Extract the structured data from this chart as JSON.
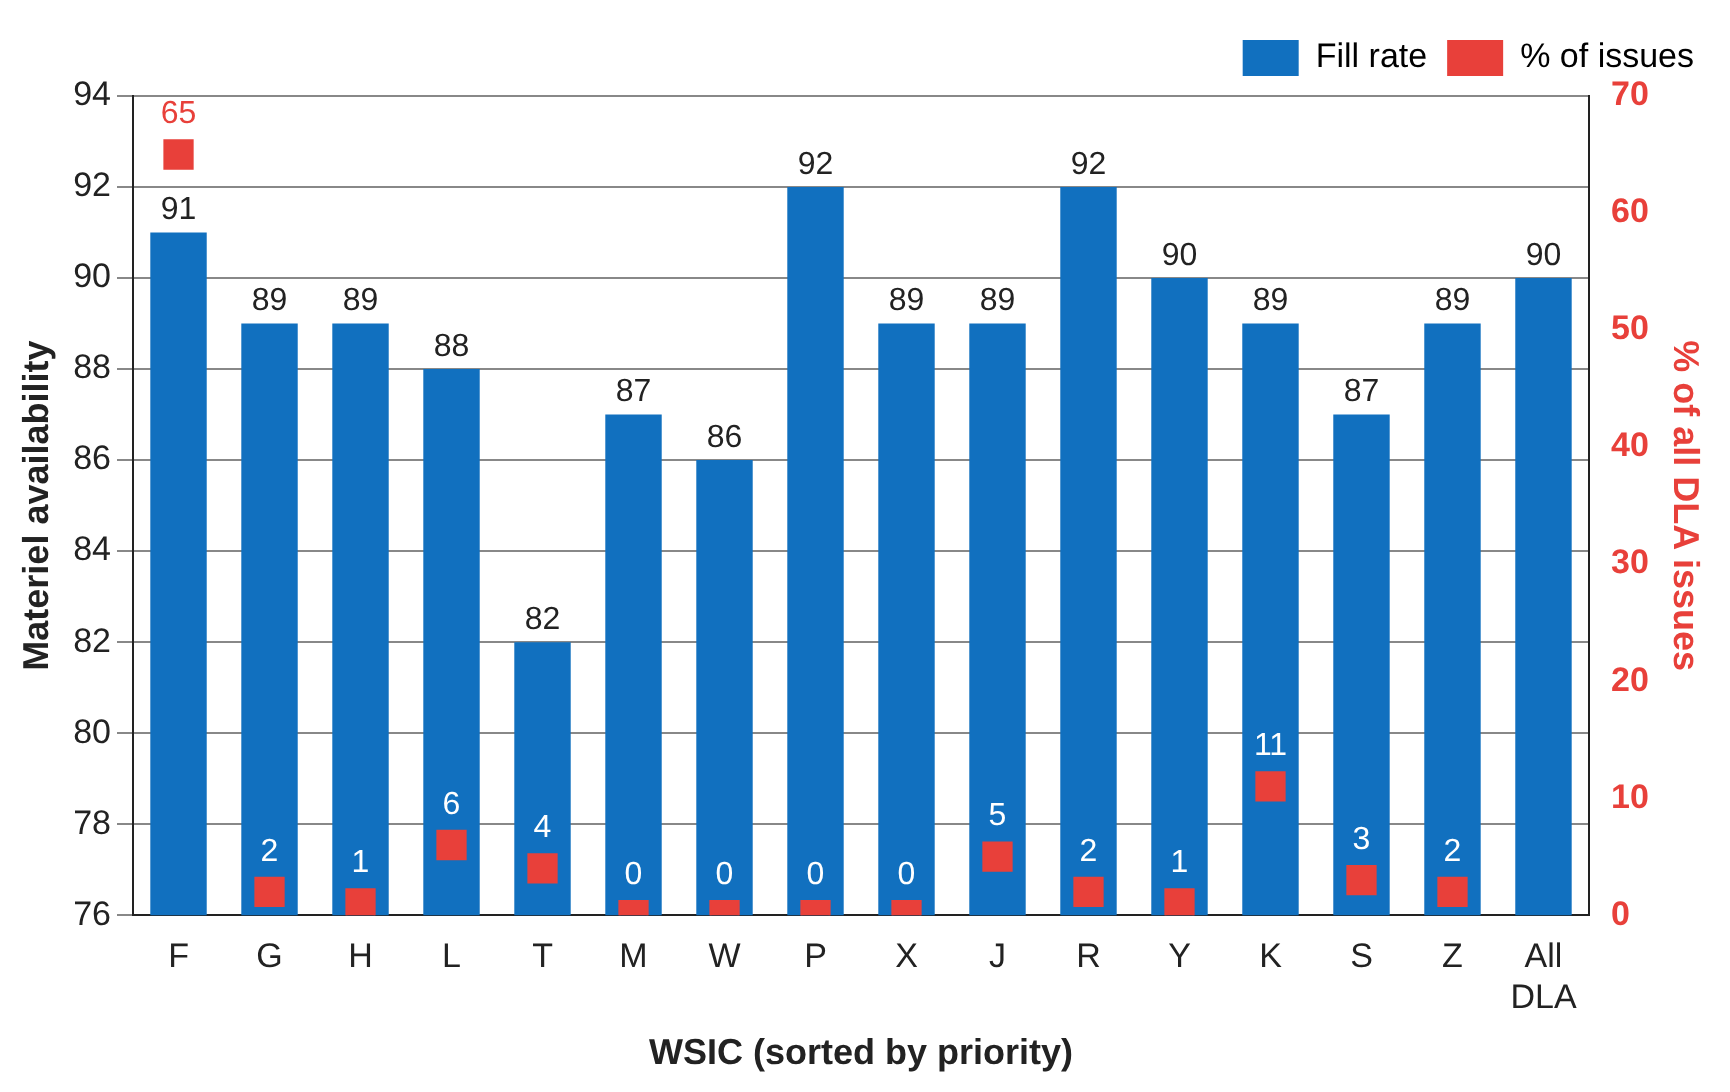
{
  "chart_data": {
    "type": "bar",
    "xlabel": "WSIC (sorted by priority)",
    "ylabel": "Materiel availability",
    "y2label": "% of all DLA issues",
    "categories": [
      "F",
      "G",
      "H",
      "L",
      "T",
      "M",
      "W",
      "P",
      "X",
      "J",
      "R",
      "Y",
      "K",
      "S",
      "Z",
      "All DLA"
    ],
    "series": [
      {
        "name": "Fill rate",
        "color": "#1170bf",
        "values": [
          91,
          89,
          89,
          88,
          82,
          87,
          86,
          92,
          89,
          89,
          92,
          90,
          89,
          87,
          89,
          90
        ]
      },
      {
        "name": "% of issues",
        "type": "scatter",
        "axis": "y2",
        "marker": "square",
        "color": "#e8403a",
        "values": [
          65,
          2,
          1,
          6,
          4,
          0,
          0,
          0,
          0,
          5,
          2,
          1,
          11,
          3,
          2,
          null
        ]
      }
    ],
    "ylim": [
      76,
      94
    ],
    "yticks": [
      76,
      78,
      80,
      82,
      84,
      86,
      88,
      90,
      92,
      94
    ],
    "y2lim": [
      0,
      70
    ],
    "y2ticks": [
      0,
      10,
      20,
      30,
      40,
      50,
      60,
      70
    ],
    "grid": "y",
    "legend": "top right",
    "data_labels": true
  }
}
